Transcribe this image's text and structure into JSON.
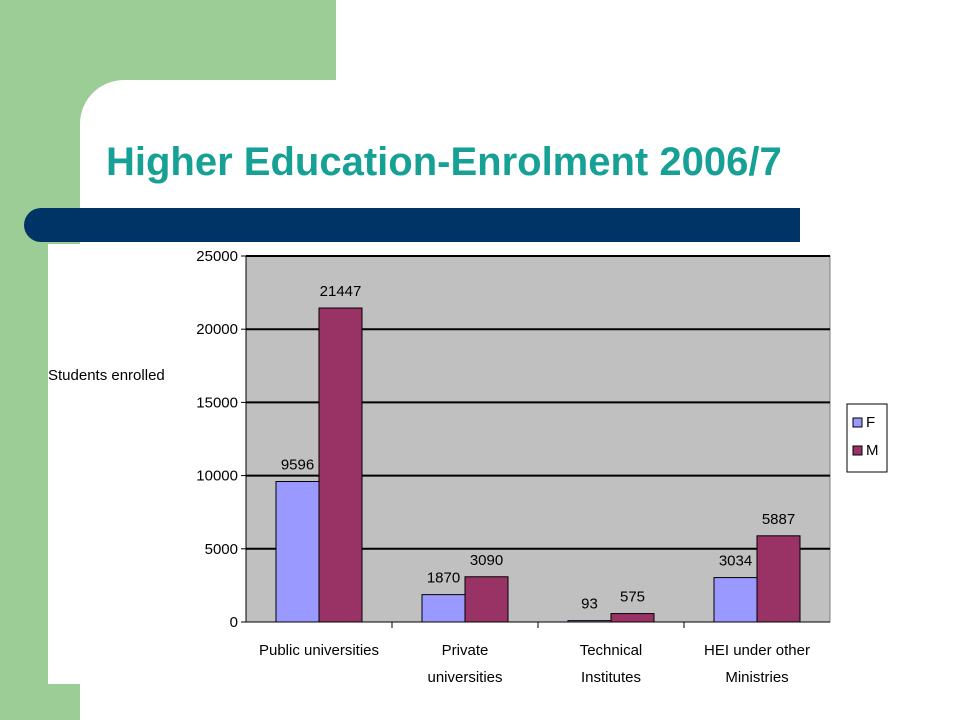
{
  "slide": {
    "title": "Higher Education-Enrolment 2006/7"
  },
  "colors": {
    "green": "#9dcd97",
    "navy": "#003366",
    "title": "#16a096",
    "plot_bg": "#c0c0c0",
    "female": "#9999ff",
    "male": "#993366"
  },
  "chart_data": {
    "type": "bar",
    "title": "",
    "xlabel": "",
    "ylabel": "Students enrolled",
    "categories": [
      "Public universities",
      "Private universities",
      "Technical Institutes",
      "HEI under other Ministries"
    ],
    "category_lines": [
      [
        "Public universities"
      ],
      [
        "Private",
        "universities"
      ],
      [
        "Technical",
        "Institutes"
      ],
      [
        "HEI under other",
        "Ministries"
      ]
    ],
    "series": [
      {
        "name": "F",
        "values": [
          9596,
          1870,
          93,
          3034
        ]
      },
      {
        "name": "M",
        "values": [
          21447,
          3090,
          575,
          5887
        ]
      }
    ],
    "ylim": [
      0,
      25000
    ],
    "yticks": [
      0,
      5000,
      10000,
      15000,
      20000,
      25000
    ],
    "grid": true,
    "legend": "right"
  }
}
